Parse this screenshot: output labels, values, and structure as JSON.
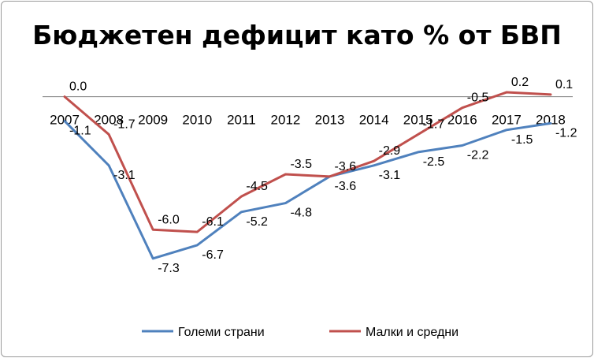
{
  "chart_data": {
    "type": "line",
    "title": "Бюджетен дефицит като % от БВП",
    "categories": [
      "2007",
      "2008",
      "2009",
      "2010",
      "2011",
      "2012",
      "2013",
      "2014",
      "2015",
      "2016",
      "2017",
      "2018"
    ],
    "series": [
      {
        "name": "Големи страни",
        "color": "#4f81bd",
        "values": [
          -1.1,
          -3.1,
          -7.3,
          -6.7,
          -5.2,
          -4.8,
          -3.6,
          -3.1,
          -2.5,
          -2.2,
          -1.5,
          -1.2
        ],
        "labels": [
          "-1.1",
          "-3.1",
          "-7.3",
          "-6.7",
          "-5.2",
          "-4.8",
          "-3.6",
          "-3.1",
          "-2.5",
          "-2.2",
          "-1.5",
          "-1.2"
        ]
      },
      {
        "name": "Малки и средни",
        "color": "#c0504d",
        "values": [
          0.0,
          -1.7,
          -6.0,
          -6.1,
          -4.5,
          -3.5,
          -3.6,
          -2.9,
          -1.7,
          -0.5,
          0.2,
          0.1
        ],
        "labels": [
          "0.0",
          "-1.7",
          "-6.0",
          "-6.1",
          "-4.5",
          "-3.5",
          "-3.6",
          "-2.9",
          "-1.7",
          "-0.5",
          "0.2",
          "0.1"
        ]
      }
    ],
    "ylim": [
      -8.8,
      0.45
    ],
    "grid": false,
    "legend_position": "bottom"
  }
}
